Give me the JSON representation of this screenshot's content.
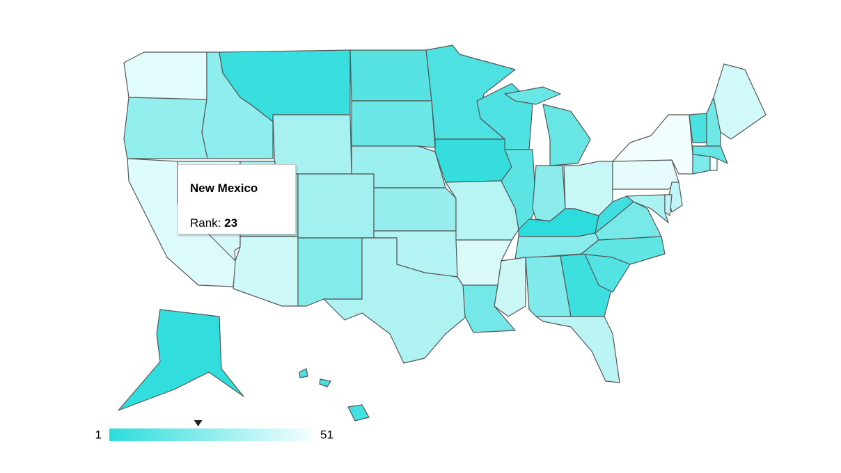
{
  "chart_data": {
    "type": "geo",
    "values": [
      47,
      27,
      46,
      44,
      26,
      4,
      32,
      30,
      42,
      31,
      23,
      12,
      17,
      29,
      28,
      35,
      34,
      9,
      3,
      36,
      45,
      19,
      10,
      13,
      16,
      25,
      40,
      1,
      24,
      41,
      22,
      5,
      37,
      11,
      14,
      20,
      6,
      48,
      51,
      8,
      18,
      43,
      15,
      21,
      50,
      38,
      33,
      39,
      2,
      7
    ],
    "colorAxis": {
      "minValue": 1,
      "maxValue": 51,
      "colors": [
        "#2ddcdc",
        "#f2fefe"
      ]
    },
    "tooltip": {
      "title": "New Mexico",
      "label": "Rank:",
      "value": 23
    }
  }
}
